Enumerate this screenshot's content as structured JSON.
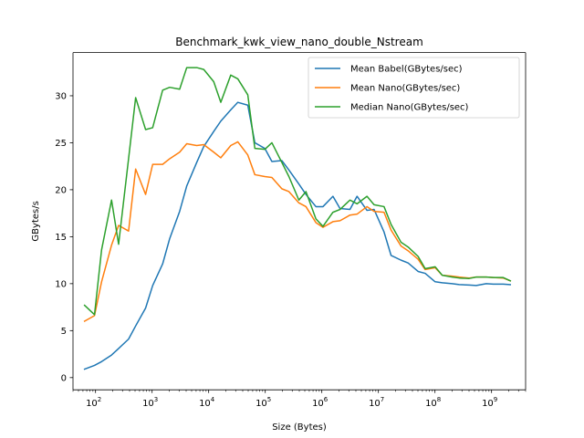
{
  "chart_data": {
    "type": "line",
    "title": "Benchmark_kwk_view_nano_double_Nstream",
    "xlabel": "Size (Bytes)",
    "ylabel": "GBytes/s",
    "xscale": "log",
    "xlim": [
      40,
      4000000000
    ],
    "ylim": [
      -1.3,
      34.6
    ],
    "x_ticks": [
      {
        "value": 100,
        "base": "10",
        "exp": "2"
      },
      {
        "value": 1000,
        "base": "10",
        "exp": "3"
      },
      {
        "value": 10000,
        "base": "10",
        "exp": "4"
      },
      {
        "value": 100000,
        "base": "10",
        "exp": "5"
      },
      {
        "value": 1000000,
        "base": "10",
        "exp": "6"
      },
      {
        "value": 10000000,
        "base": "10",
        "exp": "7"
      },
      {
        "value": 100000000,
        "base": "10",
        "exp": "8"
      },
      {
        "value": 1000000000,
        "base": "10",
        "exp": "9"
      }
    ],
    "y_ticks": [
      0,
      5,
      10,
      15,
      20,
      25,
      30
    ],
    "grid": false,
    "legend_position": "top-right",
    "x": [
      64,
      96,
      128,
      192,
      256,
      384,
      512,
      768,
      1024,
      1536,
      2048,
      3072,
      4096,
      6144,
      8192,
      12288,
      16384,
      24576,
      32768,
      49152,
      65536,
      98304,
      131072,
      196608,
      262144,
      393216,
      524288,
      786432,
      1048576,
      1572864,
      2097152,
      3145728,
      4194304,
      6291456,
      8388608,
      12582912,
      16777216,
      25165824,
      33554432,
      50331648,
      67108864,
      100663296,
      134217728,
      201326592,
      268435456,
      402653184,
      536870912,
      805306368,
      1073741824,
      1610612736,
      2147483648
    ],
    "series": [
      {
        "name": "Mean Babel(GBytes/sec)",
        "color": "#1f77b4",
        "values": [
          0.9,
          1.3,
          1.7,
          2.4,
          3.1,
          4.1,
          5.5,
          7.4,
          9.8,
          12.1,
          14.8,
          17.7,
          20.4,
          22.9,
          24.6,
          26.2,
          27.3,
          28.5,
          29.3,
          29.0,
          25.0,
          24.4,
          23.0,
          23.1,
          22.1,
          20.6,
          19.5,
          18.2,
          18.2,
          19.3,
          18.0,
          17.9,
          19.3,
          17.8,
          17.9,
          15.5,
          13.0,
          12.5,
          12.2,
          11.3,
          11.1,
          10.2,
          10.1,
          10.0,
          9.9,
          9.85,
          9.8,
          10.0,
          9.95,
          9.95,
          9.9
        ]
      },
      {
        "name": "Mean Nano(GBytes/sec)",
        "color": "#ff7f0e",
        "values": [
          6.0,
          6.6,
          10.2,
          14.1,
          16.2,
          15.6,
          22.2,
          19.5,
          22.7,
          22.7,
          23.3,
          24.0,
          24.9,
          24.7,
          24.8,
          24.0,
          23.4,
          24.7,
          25.1,
          23.7,
          21.6,
          21.4,
          21.3,
          20.1,
          19.8,
          18.6,
          18.2,
          16.5,
          16.0,
          16.6,
          16.7,
          17.3,
          17.4,
          18.2,
          17.7,
          17.6,
          15.7,
          14.0,
          13.5,
          12.6,
          11.5,
          11.7,
          10.9,
          10.8,
          10.7,
          10.6,
          10.7,
          10.7,
          10.65,
          10.6,
          10.3
        ]
      },
      {
        "name": "Median Nano(GBytes/sec)",
        "color": "#2ca02c",
        "values": [
          7.7,
          6.7,
          13.6,
          18.9,
          14.2,
          23.3,
          29.8,
          26.4,
          26.6,
          30.6,
          30.9,
          30.7,
          33.0,
          33.0,
          32.8,
          31.5,
          29.3,
          32.2,
          31.8,
          30.1,
          24.4,
          24.3,
          25.0,
          22.9,
          21.4,
          18.9,
          19.8,
          16.9,
          16.1,
          17.6,
          17.9,
          18.9,
          18.5,
          19.3,
          18.4,
          18.2,
          16.3,
          14.4,
          13.9,
          12.9,
          11.6,
          11.8,
          10.9,
          10.7,
          10.6,
          10.55,
          10.7,
          10.7,
          10.65,
          10.65,
          10.3
        ]
      }
    ]
  }
}
